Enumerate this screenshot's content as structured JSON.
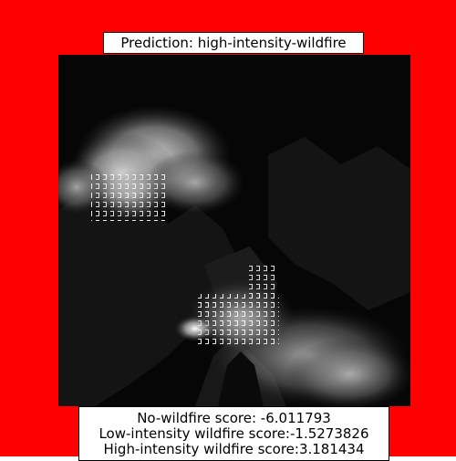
{
  "figure": {
    "background_color": "#ff0000",
    "title": "Prediction: high-intensity-wildfire",
    "image": {
      "description_icon": "wildfire-grayscale-image"
    },
    "scores": {
      "no_wildfire": "No-wildfire score: -6.011793",
      "low_intensity": "Low-intensity wildfire score:-1.5273826",
      "high_intensity": "High-intensity wildfire score:3.181434"
    }
  }
}
